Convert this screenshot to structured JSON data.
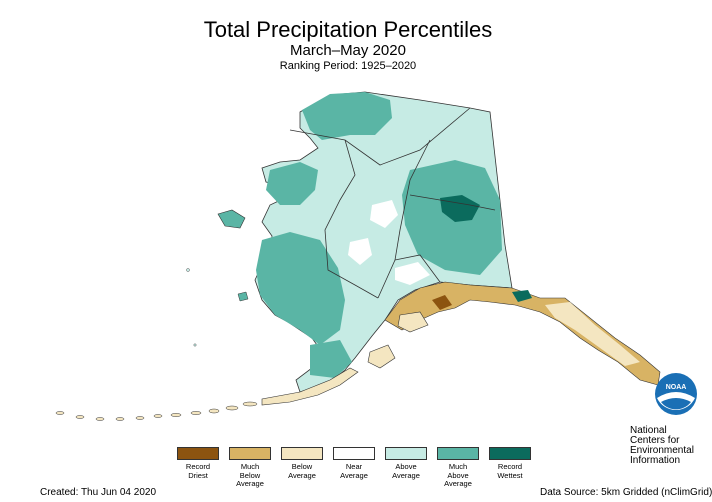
{
  "title": "Total Precipitation Percentiles",
  "subtitle": "March–May 2020",
  "ranking_period": "Ranking Period: 1925–2020",
  "legend": [
    {
      "label": "Record\nDriest",
      "color": "#8c5410"
    },
    {
      "label": "Much\nBelow\nAverage",
      "color": "#d8b364"
    },
    {
      "label": "Below\nAverage",
      "color": "#f4e6c1"
    },
    {
      "label": "Near\nAverage",
      "color": "#ffffff"
    },
    {
      "label": "Above\nAverage",
      "color": "#c6ebe4"
    },
    {
      "label": "Much\nAbove\nAverage",
      "color": "#5ab5a5"
    },
    {
      "label": "Record\nWettest",
      "color": "#0b6b5d"
    }
  ],
  "created": "Created: Thu Jun 04 2020",
  "data_source": "Data Source: 5km Gridded (nClimGrid)",
  "logo": {
    "badge_text": "NOAA"
  },
  "agency": "National Centers for\nEnvironmental\nInformation"
}
